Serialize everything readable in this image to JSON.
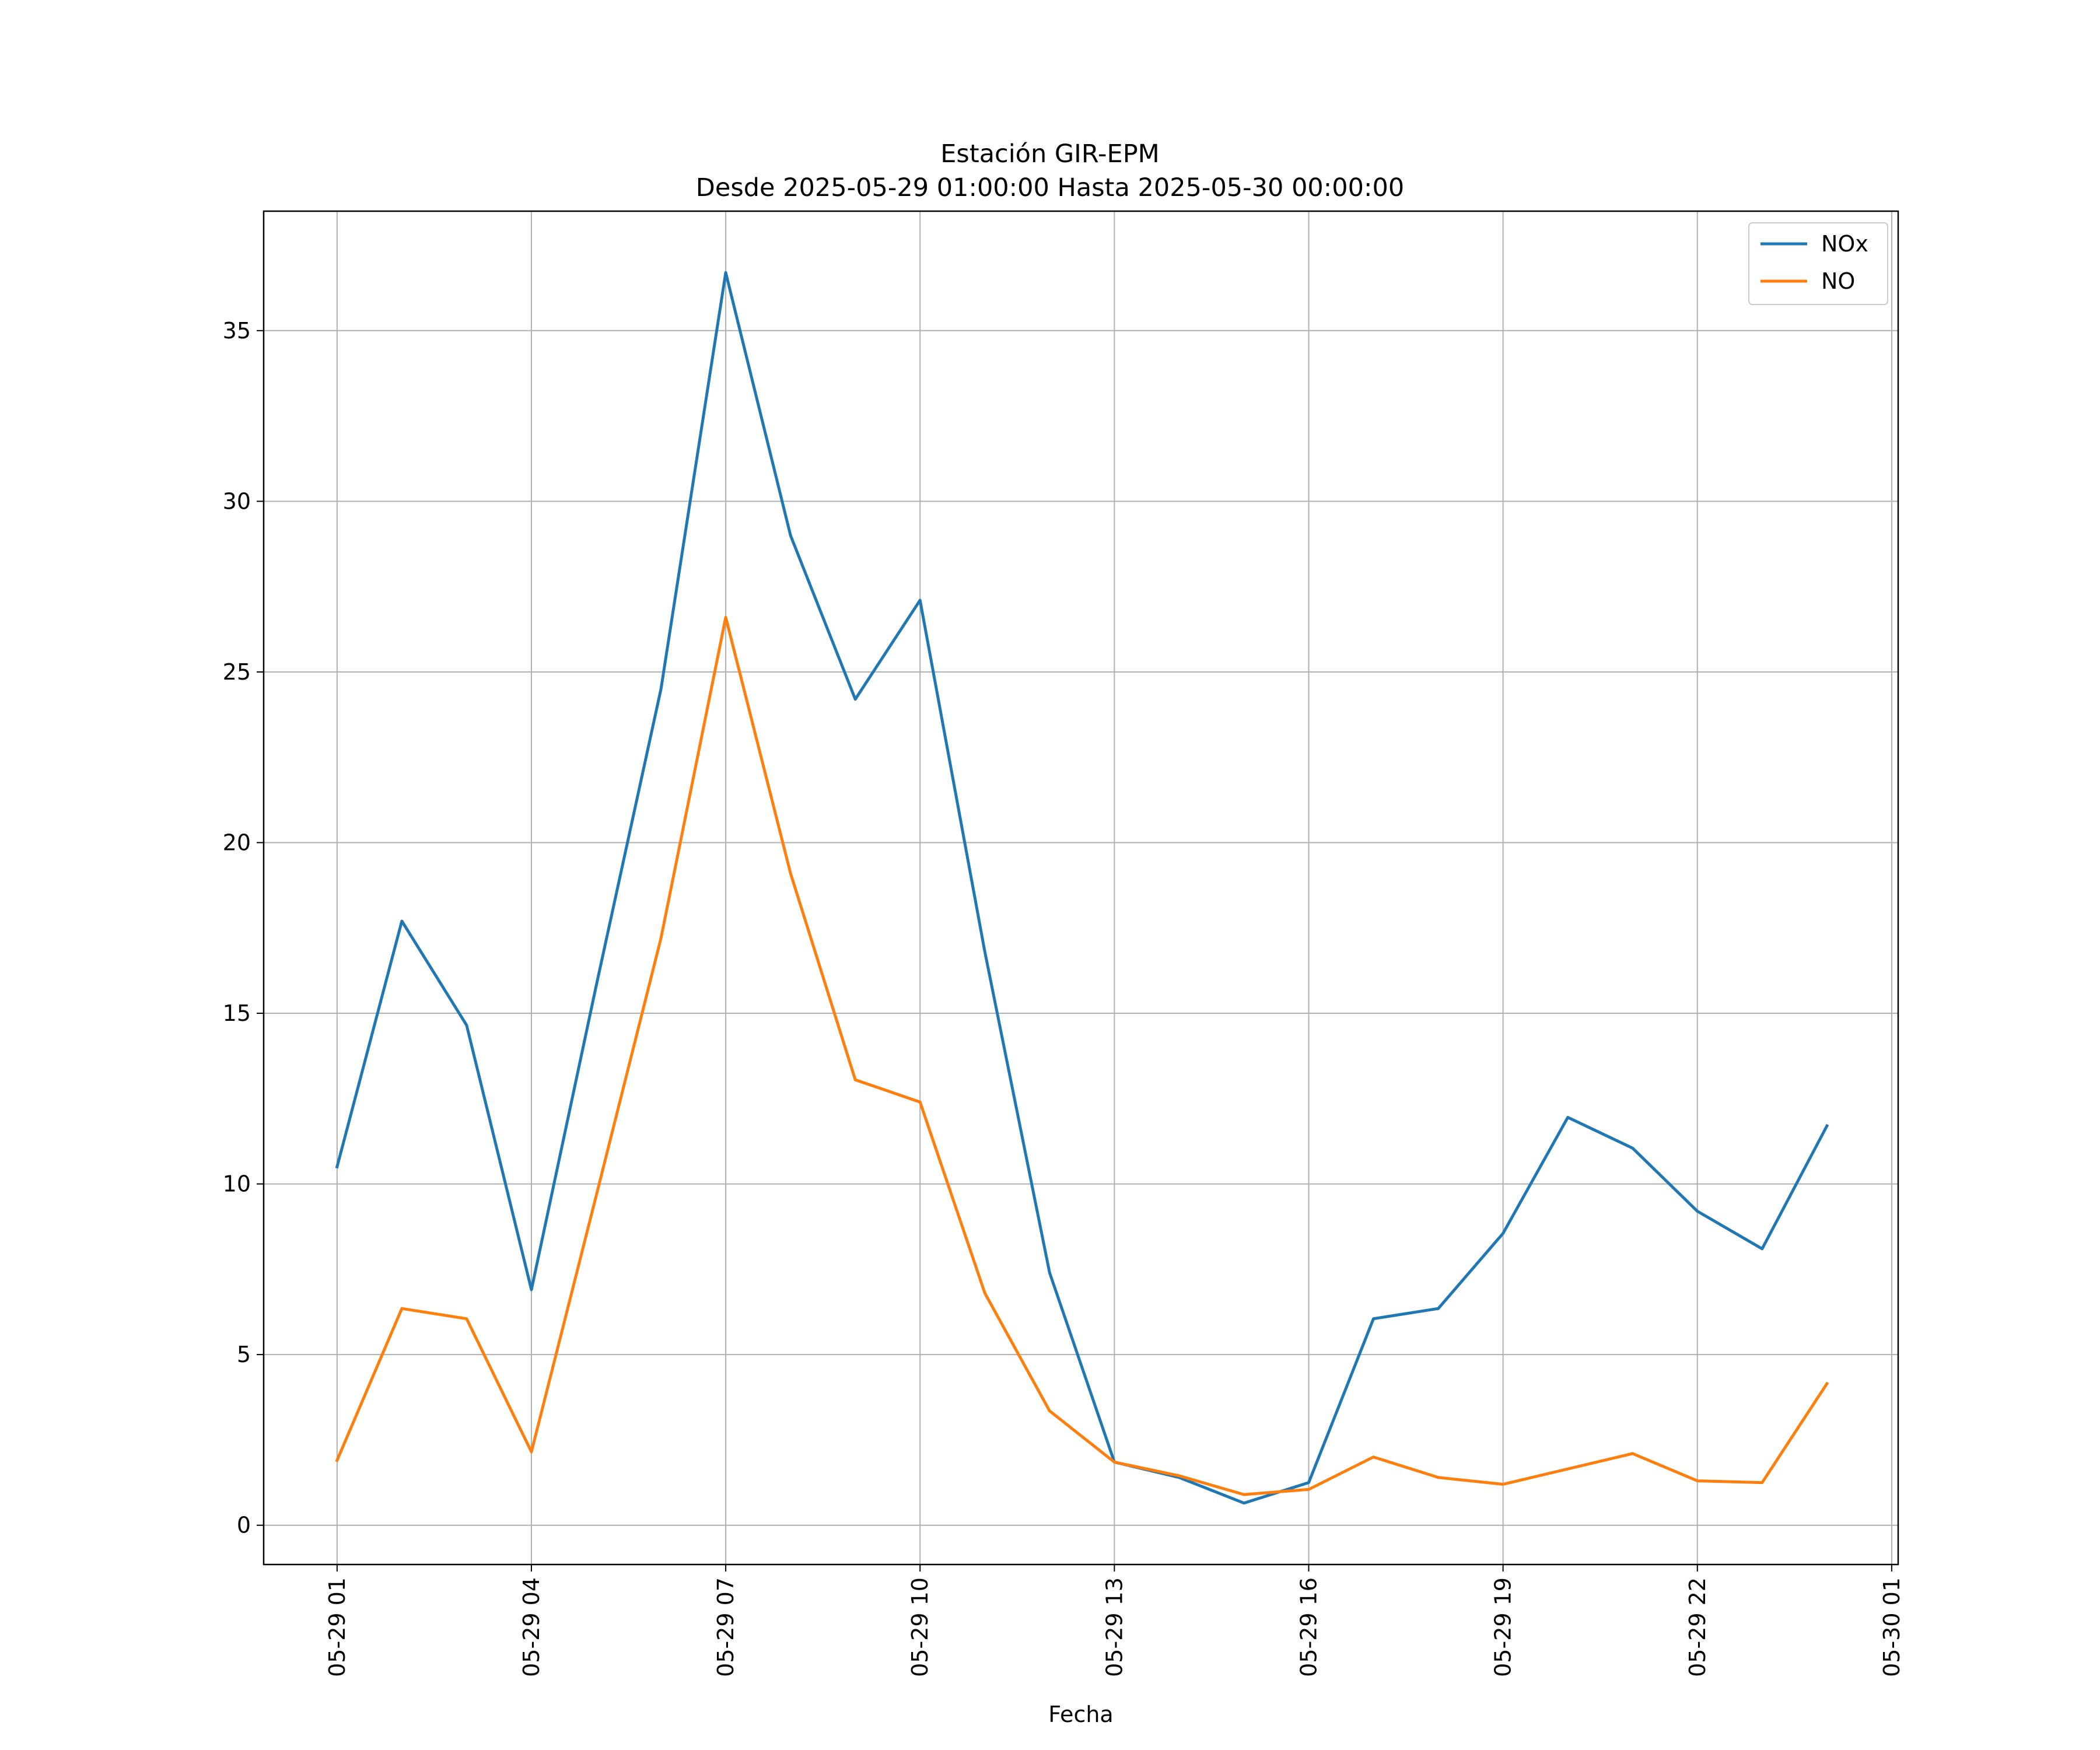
{
  "chart_data": {
    "type": "line",
    "title": "Estación GIR-EPM",
    "subtitle": "Desde 2025-05-29 01:00:00 Hasta 2025-05-30 00:00:00",
    "xlabel": "Fecha",
    "ylabel": "",
    "x": [
      "05-29 01",
      "05-29 02",
      "05-29 03",
      "05-29 04",
      "05-29 05",
      "05-29 06",
      "05-29 07",
      "05-29 08",
      "05-29 09",
      "05-29 10",
      "05-29 11",
      "05-29 12",
      "05-29 13",
      "05-29 14",
      "05-29 15",
      "05-29 16",
      "05-29 17",
      "05-29 18",
      "05-29 19",
      "05-29 20",
      "05-29 21",
      "05-29 22",
      "05-29 23",
      "05-30 00"
    ],
    "x_ticks": [
      "05-29 01",
      "05-29 04",
      "05-29 07",
      "05-29 10",
      "05-29 13",
      "05-29 16",
      "05-29 19",
      "05-29 22",
      "05-30 01"
    ],
    "y_ticks": [
      "0",
      "5",
      "10",
      "15",
      "20",
      "25",
      "30",
      "35"
    ],
    "xlim": [
      "05-28 23:52",
      "05-30 01:06"
    ],
    "ylim": [
      -1.15,
      38.5
    ],
    "grid": true,
    "legend_position": "top-right",
    "series": [
      {
        "name": "NOx",
        "color": "#1f77b4",
        "values": [
          10.5,
          17.7,
          14.65,
          6.9,
          15.8,
          24.5,
          36.7,
          29.0,
          24.2,
          27.1,
          16.8,
          7.4,
          1.85,
          1.4,
          0.65,
          1.25,
          6.05,
          6.35,
          8.55,
          11.95,
          11.05,
          9.2,
          8.1,
          11.7
        ]
      },
      {
        "name": "NO",
        "color": "#ff7f0e",
        "values": [
          1.9,
          6.35,
          6.05,
          2.15,
          9.65,
          17.2,
          26.6,
          19.1,
          13.05,
          12.4,
          6.8,
          3.35,
          1.85,
          1.45,
          0.9,
          1.05,
          2.0,
          1.4,
          1.2,
          1.65,
          2.1,
          1.3,
          1.25,
          4.15
        ]
      }
    ]
  }
}
